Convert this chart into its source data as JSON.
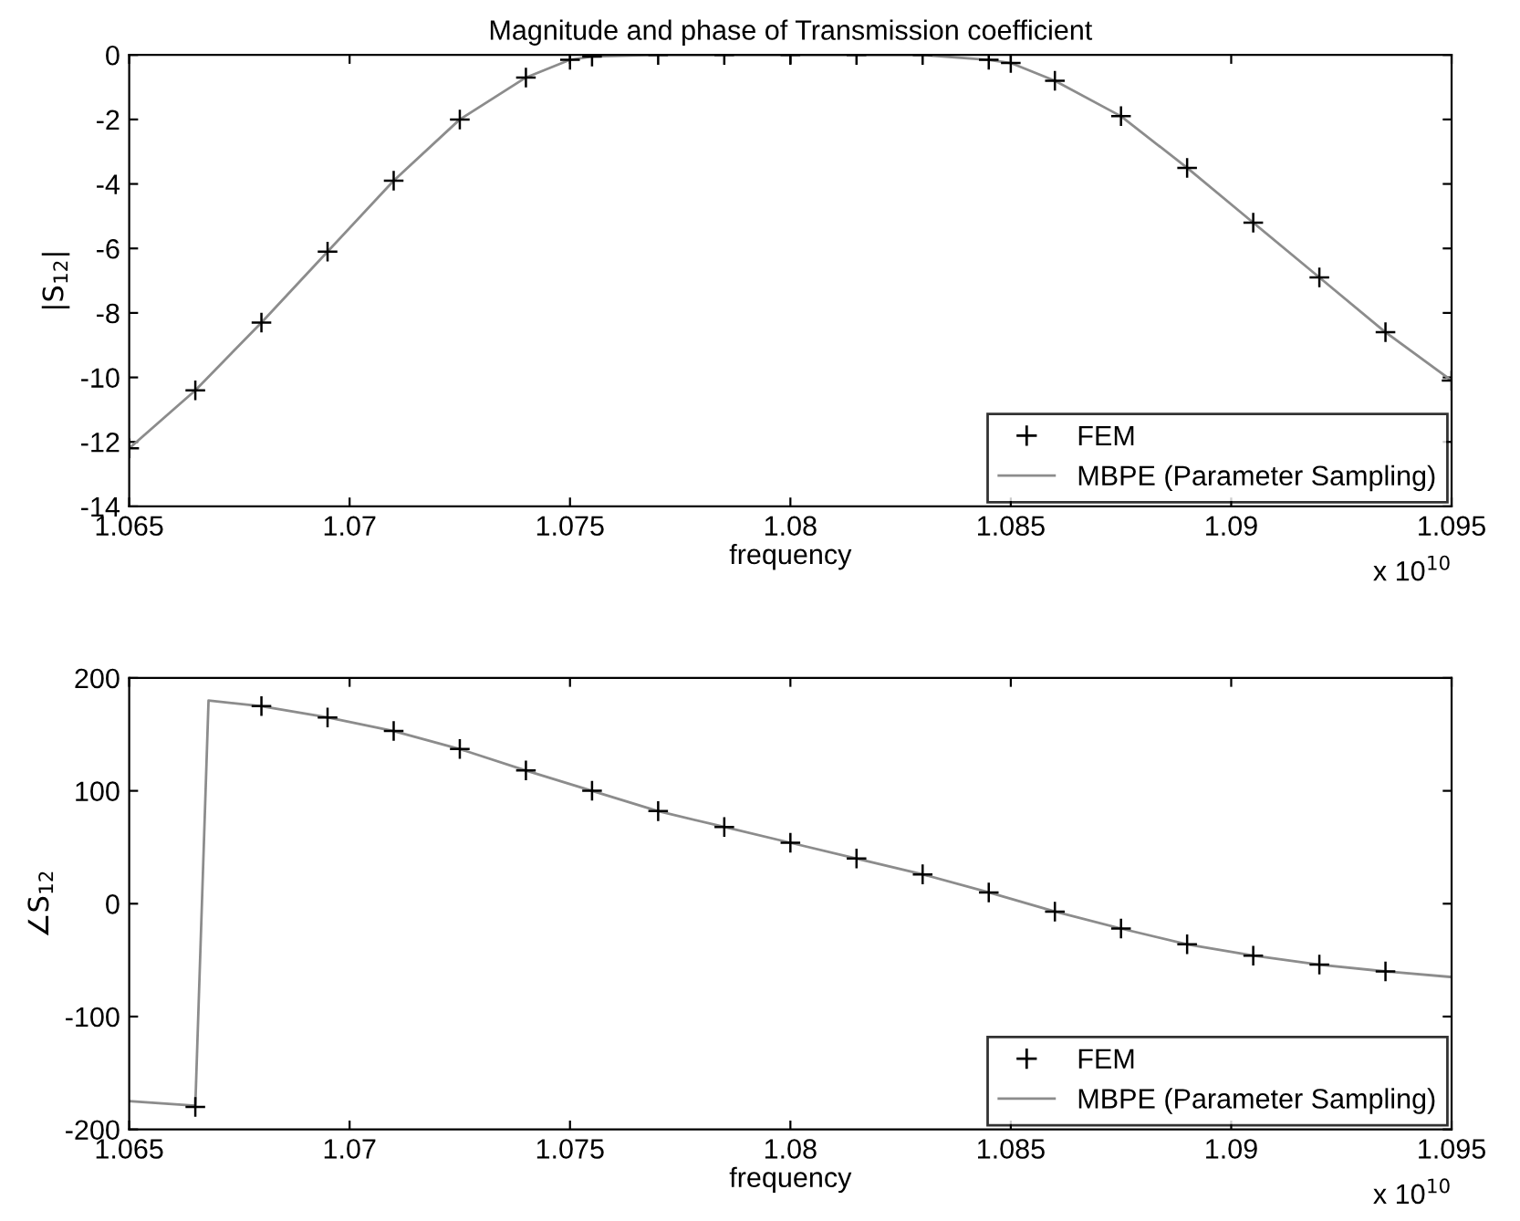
{
  "chart_data": [
    {
      "type": "line",
      "title": "Magnitude and phase of Transmission coefficient",
      "xlabel": "frequency",
      "ylabel": "|S$_{12}$|",
      "annotations": [
        "x 10$^{10}$"
      ],
      "xlim": [
        1.065,
        1.095
      ],
      "xticks": [
        1.065,
        1.07,
        1.075,
        1.08,
        1.085,
        1.09,
        1.095
      ],
      "ylim": [
        -14,
        0
      ],
      "yticks": [
        -14,
        -12,
        -10,
        -8,
        -6,
        -4,
        -2,
        0
      ],
      "grid": false,
      "legend": "bottom right",
      "series": [
        {
          "name": "FEM",
          "type": "scatter",
          "marker": "cross",
          "color": "#000000",
          "x": [
            1.065,
            1.0665,
            1.068,
            1.0695,
            1.071,
            1.0725,
            1.074,
            1.075,
            1.0755,
            1.077,
            1.0785,
            1.08,
            1.0815,
            1.083,
            1.0845,
            1.085,
            1.086,
            1.0875,
            1.089,
            1.0905,
            1.092,
            1.0935,
            1.095
          ],
          "values": [
            -12.2,
            -10.4,
            -8.3,
            -6.1,
            -3.9,
            -2.0,
            -0.7,
            -0.15,
            -0.05,
            0,
            0,
            0,
            0,
            0,
            -0.15,
            -0.25,
            -0.8,
            -1.9,
            -3.5,
            -5.2,
            -6.9,
            -8.6,
            -10.1
          ]
        },
        {
          "name": "MBPE (Parameter Sampling)",
          "color": "#8c8c8c",
          "x": [
            1.065,
            1.0665,
            1.068,
            1.0695,
            1.071,
            1.0725,
            1.074,
            1.075,
            1.0755,
            1.077,
            1.0785,
            1.08,
            1.0815,
            1.083,
            1.0845,
            1.085,
            1.086,
            1.0875,
            1.089,
            1.0905,
            1.092,
            1.0935,
            1.095
          ],
          "values": [
            -12.2,
            -10.4,
            -8.3,
            -6.1,
            -3.9,
            -2.0,
            -0.7,
            -0.15,
            -0.05,
            0,
            0,
            0,
            0,
            0,
            -0.15,
            -0.25,
            -0.8,
            -1.9,
            -3.5,
            -5.2,
            -6.9,
            -8.6,
            -10.1
          ]
        }
      ]
    },
    {
      "type": "line",
      "xlabel": "frequency",
      "ylabel": "∠S$_{12}$",
      "annotations": [
        "x 10$^{10}$"
      ],
      "xlim": [
        1.065,
        1.095
      ],
      "xticks": [
        1.065,
        1.07,
        1.075,
        1.08,
        1.085,
        1.09,
        1.095
      ],
      "ylim": [
        -200,
        200
      ],
      "yticks": [
        -200,
        -100,
        0,
        100,
        200
      ],
      "grid": false,
      "legend": "bottom right",
      "series": [
        {
          "name": "FEM",
          "type": "scatter",
          "marker": "cross",
          "color": "#000000",
          "x": [
            1.0665,
            1.068,
            1.0695,
            1.071,
            1.0725,
            1.074,
            1.0755,
            1.077,
            1.0785,
            1.08,
            1.0815,
            1.083,
            1.0845,
            1.086,
            1.0875,
            1.089,
            1.0905,
            1.092,
            1.0935
          ],
          "values": [
            -180,
            175,
            165,
            153,
            137,
            118,
            100,
            82,
            68,
            54,
            40,
            26,
            10,
            -7,
            -22,
            -36,
            -46,
            -54,
            -60
          ]
        },
        {
          "name": "MBPE (Parameter Sampling)",
          "color": "#8c8c8c",
          "x": [
            1.065,
            1.0665,
            1.0668,
            1.068,
            1.0695,
            1.071,
            1.0725,
            1.074,
            1.0755,
            1.077,
            1.0785,
            1.08,
            1.0815,
            1.083,
            1.0845,
            1.086,
            1.0875,
            1.089,
            1.0905,
            1.092,
            1.0935,
            1.095
          ],
          "values": [
            -175,
            -179,
            180,
            175,
            165,
            153,
            137,
            118,
            100,
            82,
            68,
            54,
            40,
            26,
            10,
            -7,
            -22,
            -36,
            -46,
            -54,
            -60,
            -65
          ]
        }
      ]
    }
  ]
}
